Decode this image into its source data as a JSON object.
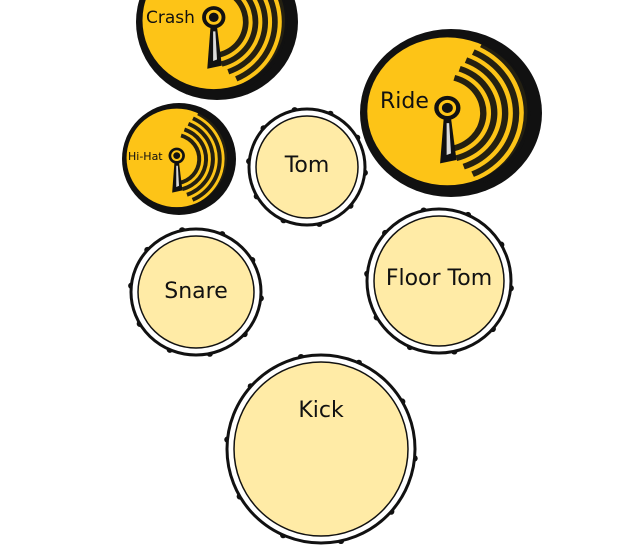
{
  "kit": {
    "colors": {
      "cymbal_face": "#FDC417",
      "cymbal_edge": "#111111",
      "drum_head": "#FFEBA6",
      "drum_rim": "#111111"
    },
    "cymbals": {
      "crash": {
        "label": "Crash"
      },
      "ride": {
        "label": "Ride"
      },
      "hihat": {
        "label": "Hi-Hat"
      }
    },
    "drums": {
      "tom": {
        "label": "Tom"
      },
      "snare": {
        "label": "Snare"
      },
      "floor_tom": {
        "label": "Floor Tom"
      },
      "kick": {
        "label": "Kick"
      }
    }
  }
}
